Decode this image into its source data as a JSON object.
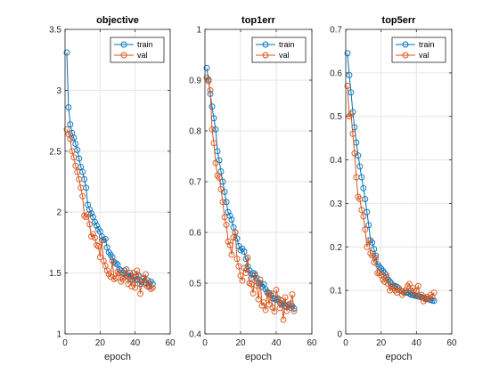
{
  "colors": {
    "train": "#0072BD",
    "val": "#D95319",
    "grid": "#e6e6e6",
    "axis": "#262626"
  },
  "chart_data": [
    {
      "type": "line",
      "title": "objective",
      "xlabel": "epoch",
      "ylabel": "",
      "xlim": [
        0,
        60
      ],
      "ylim": [
        1,
        3.5
      ],
      "xticks": [
        "0",
        "20",
        "40",
        "60"
      ],
      "yticks": [
        "1",
        "1.5",
        "2",
        "2.5",
        "3",
        "3.5"
      ],
      "grid": true,
      "legend": "top-right",
      "x": [
        1,
        2,
        3,
        4,
        5,
        6,
        7,
        8,
        9,
        10,
        11,
        12,
        13,
        14,
        15,
        16,
        17,
        18,
        19,
        20,
        21,
        22,
        23,
        24,
        25,
        26,
        27,
        28,
        29,
        30,
        31,
        32,
        33,
        34,
        35,
        36,
        37,
        38,
        39,
        40,
        41,
        42,
        43,
        44,
        45,
        46,
        47,
        48,
        49,
        50
      ],
      "series": [
        {
          "name": "train",
          "values": [
            3.31,
            2.86,
            2.72,
            2.65,
            2.61,
            2.56,
            2.51,
            2.44,
            2.37,
            2.33,
            2.27,
            2.2,
            2.06,
            2.02,
            1.99,
            1.96,
            1.92,
            1.89,
            1.86,
            1.84,
            1.8,
            1.77,
            1.78,
            1.71,
            1.67,
            1.65,
            1.63,
            1.59,
            1.58,
            1.57,
            1.53,
            1.52,
            1.5,
            1.52,
            1.48,
            1.47,
            1.5,
            1.45,
            1.47,
            1.44,
            1.45,
            1.48,
            1.41,
            1.43,
            1.46,
            1.42,
            1.44,
            1.39,
            1.43,
            1.41
          ]
        },
        {
          "name": "val",
          "values": [
            2.68,
            2.64,
            2.6,
            2.5,
            2.45,
            2.38,
            2.33,
            2.27,
            2.2,
            2.13,
            1.97,
            1.96,
            1.98,
            1.9,
            1.8,
            1.82,
            1.79,
            1.73,
            1.72,
            1.63,
            1.77,
            1.6,
            1.56,
            1.52,
            1.49,
            1.47,
            1.6,
            1.45,
            1.46,
            1.51,
            1.5,
            1.43,
            1.45,
            1.47,
            1.53,
            1.41,
            1.48,
            1.39,
            1.5,
            1.38,
            1.52,
            1.47,
            1.33,
            1.45,
            1.41,
            1.49,
            1.39,
            1.42,
            1.37,
            1.38
          ]
        }
      ]
    },
    {
      "type": "line",
      "title": "top1err",
      "xlabel": "epoch",
      "ylabel": "",
      "xlim": [
        0,
        60
      ],
      "ylim": [
        0.4,
        1
      ],
      "xticks": [
        "0",
        "20",
        "40",
        "60"
      ],
      "yticks": [
        "0.4",
        "0.5",
        "0.6",
        "0.7",
        "0.8",
        "0.9",
        "1"
      ],
      "grid": true,
      "legend": "top-right",
      "x": [
        1,
        2,
        3,
        4,
        5,
        6,
        7,
        8,
        9,
        10,
        11,
        12,
        13,
        14,
        15,
        16,
        17,
        18,
        19,
        20,
        21,
        22,
        23,
        24,
        25,
        26,
        27,
        28,
        29,
        30,
        31,
        32,
        33,
        34,
        35,
        36,
        37,
        38,
        39,
        40,
        41,
        42,
        43,
        44,
        45,
        46,
        47,
        48,
        49,
        50
      ],
      "series": [
        {
          "name": "train",
          "values": [
            0.924,
            0.901,
            0.873,
            0.848,
            0.825,
            0.803,
            0.76,
            0.742,
            0.72,
            0.7,
            0.68,
            0.66,
            0.64,
            0.633,
            0.625,
            0.61,
            0.6,
            0.588,
            0.573,
            0.565,
            0.568,
            0.562,
            0.548,
            0.533,
            0.525,
            0.51,
            0.52,
            0.518,
            0.51,
            0.5,
            0.5,
            0.493,
            0.498,
            0.488,
            0.483,
            0.48,
            0.476,
            0.47,
            0.47,
            0.467,
            0.468,
            0.462,
            0.458,
            0.46,
            0.455,
            0.453,
            0.458,
            0.452,
            0.455,
            0.45
          ]
        },
        {
          "name": "val",
          "values": [
            0.905,
            0.898,
            0.88,
            0.803,
            0.776,
            0.737,
            0.712,
            0.708,
            0.685,
            0.66,
            0.63,
            0.615,
            0.582,
            0.575,
            0.556,
            0.59,
            0.6,
            0.548,
            0.533,
            0.515,
            0.505,
            0.53,
            0.52,
            0.55,
            0.5,
            0.498,
            0.48,
            0.515,
            0.495,
            0.468,
            0.507,
            0.456,
            0.462,
            0.447,
            0.481,
            0.458,
            0.48,
            0.452,
            0.444,
            0.487,
            0.47,
            0.451,
            0.466,
            0.428,
            0.472,
            0.445,
            0.456,
            0.46,
            0.478,
            0.445
          ]
        }
      ]
    },
    {
      "type": "line",
      "title": "top5err",
      "xlabel": "epoch",
      "ylabel": "",
      "xlim": [
        0,
        60
      ],
      "ylim": [
        0,
        0.7
      ],
      "xticks": [
        "0",
        "20",
        "40",
        "60"
      ],
      "yticks": [
        "0",
        "0.1",
        "0.2",
        "0.3",
        "0.4",
        "0.5",
        "0.6",
        "0.7"
      ],
      "grid": true,
      "legend": "top-right",
      "x": [
        1,
        2,
        3,
        4,
        5,
        6,
        7,
        8,
        9,
        10,
        11,
        12,
        13,
        14,
        15,
        16,
        17,
        18,
        19,
        20,
        21,
        22,
        23,
        24,
        25,
        26,
        27,
        28,
        29,
        30,
        31,
        32,
        33,
        34,
        35,
        36,
        37,
        38,
        39,
        40,
        41,
        42,
        43,
        44,
        45,
        46,
        47,
        48,
        49,
        50
      ],
      "series": [
        {
          "name": "train",
          "values": [
            0.645,
            0.595,
            0.555,
            0.51,
            0.475,
            0.44,
            0.41,
            0.385,
            0.36,
            0.335,
            0.31,
            0.28,
            0.25,
            0.215,
            0.21,
            0.195,
            0.18,
            0.16,
            0.155,
            0.15,
            0.145,
            0.14,
            0.13,
            0.125,
            0.12,
            0.115,
            0.11,
            0.11,
            0.108,
            0.105,
            0.1,
            0.098,
            0.095,
            0.095,
            0.095,
            0.093,
            0.09,
            0.09,
            0.088,
            0.088,
            0.086,
            0.085,
            0.085,
            0.083,
            0.082,
            0.08,
            0.08,
            0.078,
            0.077,
            0.076
          ]
        },
        {
          "name": "val",
          "values": [
            0.57,
            0.5,
            0.505,
            0.46,
            0.415,
            0.36,
            0.315,
            0.31,
            0.285,
            0.27,
            0.24,
            0.2,
            0.215,
            0.185,
            0.18,
            0.165,
            0.175,
            0.14,
            0.14,
            0.135,
            0.125,
            0.12,
            0.135,
            0.115,
            0.1,
            0.11,
            0.105,
            0.1,
            0.095,
            0.105,
            0.1,
            0.09,
            0.095,
            0.1,
            0.11,
            0.115,
            0.1,
            0.105,
            0.09,
            0.1,
            0.11,
            0.085,
            0.09,
            0.075,
            0.08,
            0.085,
            0.08,
            0.09,
            0.085,
            0.095
          ]
        }
      ]
    }
  ]
}
